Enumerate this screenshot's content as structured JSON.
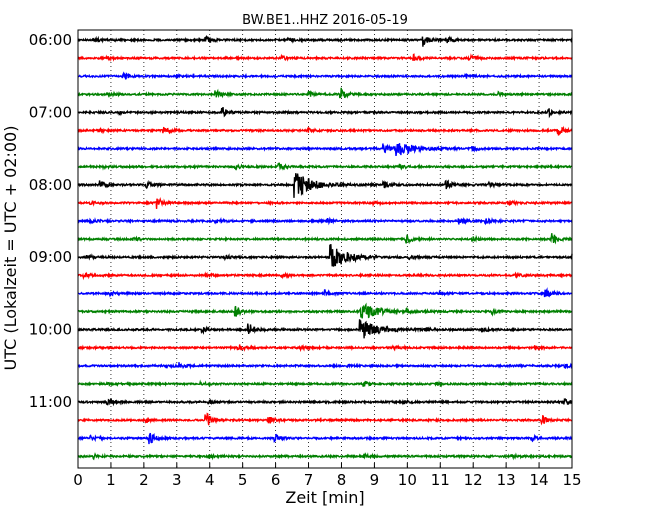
{
  "chart_data": {
    "type": "line",
    "subtype": "dayplot-seismogram",
    "title": "BW.BE1..HHZ 2016-05-19",
    "xlabel": "Zeit  [min]",
    "ylabel": "UTC (Lokalzeit = UTC + 02:00)",
    "xlim": [
      0,
      15
    ],
    "x_ticks": [
      0,
      1,
      2,
      3,
      4,
      5,
      6,
      7,
      8,
      9,
      10,
      11,
      12,
      13,
      14,
      15
    ],
    "y_tick_labels": [
      "06:00",
      "07:00",
      "08:00",
      "09:00",
      "10:00",
      "11:00"
    ],
    "grid": true,
    "trace_interval_minutes": 15,
    "trace_colors": [
      "#000000",
      "#ff0000",
      "#0000ff",
      "#008000"
    ],
    "traces": [
      {
        "start": "06:00",
        "events": [
          [
            0.5,
            0.3
          ],
          [
            3.9,
            0.4
          ],
          [
            6.4,
            0.2
          ],
          [
            10.5,
            1.0
          ],
          [
            11.2,
            0.5
          ]
        ]
      },
      {
        "start": "06:15",
        "events": [
          [
            0.9,
            0.2
          ],
          [
            6.2,
            0.3
          ],
          [
            10.2,
            0.5
          ],
          [
            11.9,
            0.4
          ]
        ]
      },
      {
        "start": "06:30",
        "events": [
          [
            1.4,
            0.4
          ],
          [
            3.0,
            0.2
          ],
          [
            11.8,
            0.3
          ]
        ]
      },
      {
        "start": "06:45",
        "events": [
          [
            0.9,
            0.2
          ],
          [
            4.2,
            0.5
          ],
          [
            7.0,
            0.5
          ],
          [
            8.0,
            0.9
          ],
          [
            12.8,
            0.3
          ]
        ]
      },
      {
        "start": "07:00",
        "events": [
          [
            1.3,
            0.2
          ],
          [
            4.4,
            0.6
          ],
          [
            14.3,
            0.5
          ]
        ]
      },
      {
        "start": "07:15",
        "events": [
          [
            0.6,
            0.3
          ],
          [
            2.6,
            0.6
          ],
          [
            7.0,
            0.3
          ],
          [
            14.6,
            0.6
          ]
        ]
      },
      {
        "start": "07:30",
        "events": [
          [
            9.3,
            0.7
          ],
          [
            9.7,
            1.1
          ],
          [
            12.0,
            0.3
          ]
        ]
      },
      {
        "start": "07:45",
        "events": [
          [
            0.8,
            0.2
          ],
          [
            4.8,
            0.3
          ],
          [
            6.1,
            0.5
          ],
          [
            9.8,
            0.3
          ]
        ]
      },
      {
        "start": "08:00",
        "events": [
          [
            0.7,
            0.5
          ],
          [
            2.1,
            0.5
          ],
          [
            6.6,
            1.8
          ],
          [
            9.3,
            0.6
          ],
          [
            11.2,
            0.6
          ],
          [
            12.5,
            0.3
          ]
        ]
      },
      {
        "start": "08:15",
        "events": [
          [
            0.4,
            0.2
          ],
          [
            2.4,
            0.8
          ],
          [
            9.0,
            0.2
          ],
          [
            13.1,
            0.3
          ]
        ]
      },
      {
        "start": "08:30",
        "events": [
          [
            0.4,
            0.3
          ],
          [
            4.2,
            0.3
          ],
          [
            7.6,
            0.3
          ],
          [
            11.6,
            0.6
          ],
          [
            12.4,
            0.3
          ]
        ]
      },
      {
        "start": "08:45",
        "events": [
          [
            1.7,
            0.3
          ],
          [
            10.0,
            0.6
          ],
          [
            12.0,
            0.3
          ],
          [
            14.4,
            0.8
          ]
        ]
      },
      {
        "start": "09:00",
        "events": [
          [
            0.3,
            0.3
          ],
          [
            4.5,
            0.2
          ],
          [
            7.7,
            1.8
          ],
          [
            10.1,
            0.3
          ],
          [
            15.0,
            0.4
          ]
        ]
      },
      {
        "start": "09:15",
        "events": [
          [
            0.2,
            0.3
          ],
          [
            3.9,
            0.3
          ],
          [
            6.2,
            0.3
          ],
          [
            13.3,
            0.3
          ]
        ]
      },
      {
        "start": "09:30",
        "events": [
          [
            1.0,
            0.2
          ],
          [
            7.5,
            0.4
          ],
          [
            11.0,
            0.2
          ],
          [
            14.2,
            0.6
          ]
        ]
      },
      {
        "start": "09:45",
        "events": [
          [
            4.8,
            0.7
          ],
          [
            8.6,
            1.2
          ],
          [
            10.0,
            0.3
          ],
          [
            12.6,
            0.3
          ]
        ]
      },
      {
        "start": "10:00",
        "events": [
          [
            3.8,
            0.3
          ],
          [
            5.2,
            0.8
          ],
          [
            8.6,
            1.4
          ],
          [
            10.6,
            0.2
          ],
          [
            12.3,
            0.3
          ]
        ]
      },
      {
        "start": "10:15",
        "events": [
          [
            4.9,
            0.4
          ],
          [
            6.8,
            0.2
          ],
          [
            9.6,
            0.2
          ],
          [
            13.9,
            0.3
          ]
        ]
      },
      {
        "start": "10:30",
        "events": [
          [
            2.7,
            0.4
          ],
          [
            3.1,
            0.4
          ],
          [
            8.2,
            0.2
          ],
          [
            14.8,
            0.3
          ]
        ]
      },
      {
        "start": "10:45",
        "events": [
          [
            0.9,
            0.2
          ],
          [
            3.7,
            0.2
          ],
          [
            8.7,
            0.3
          ],
          [
            10.9,
            0.2
          ]
        ]
      },
      {
        "start": "11:00",
        "events": [
          [
            0.9,
            0.6
          ],
          [
            4.0,
            0.2
          ],
          [
            9.9,
            0.2
          ],
          [
            14.8,
            0.3
          ]
        ]
      },
      {
        "start": "11:15",
        "events": [
          [
            2.1,
            0.3
          ],
          [
            3.9,
            1.0
          ],
          [
            5.8,
            0.5
          ],
          [
            14.1,
            0.6
          ]
        ]
      },
      {
        "start": "11:30",
        "events": [
          [
            0.4,
            0.3
          ],
          [
            2.2,
            0.8
          ],
          [
            6.0,
            0.6
          ],
          [
            13.8,
            0.3
          ]
        ]
      },
      {
        "start": "11:45",
        "events": [
          [
            0.5,
            0.3
          ],
          [
            4.0,
            0.2
          ],
          [
            8.7,
            0.3
          ],
          [
            13.2,
            0.2
          ]
        ]
      }
    ]
  }
}
